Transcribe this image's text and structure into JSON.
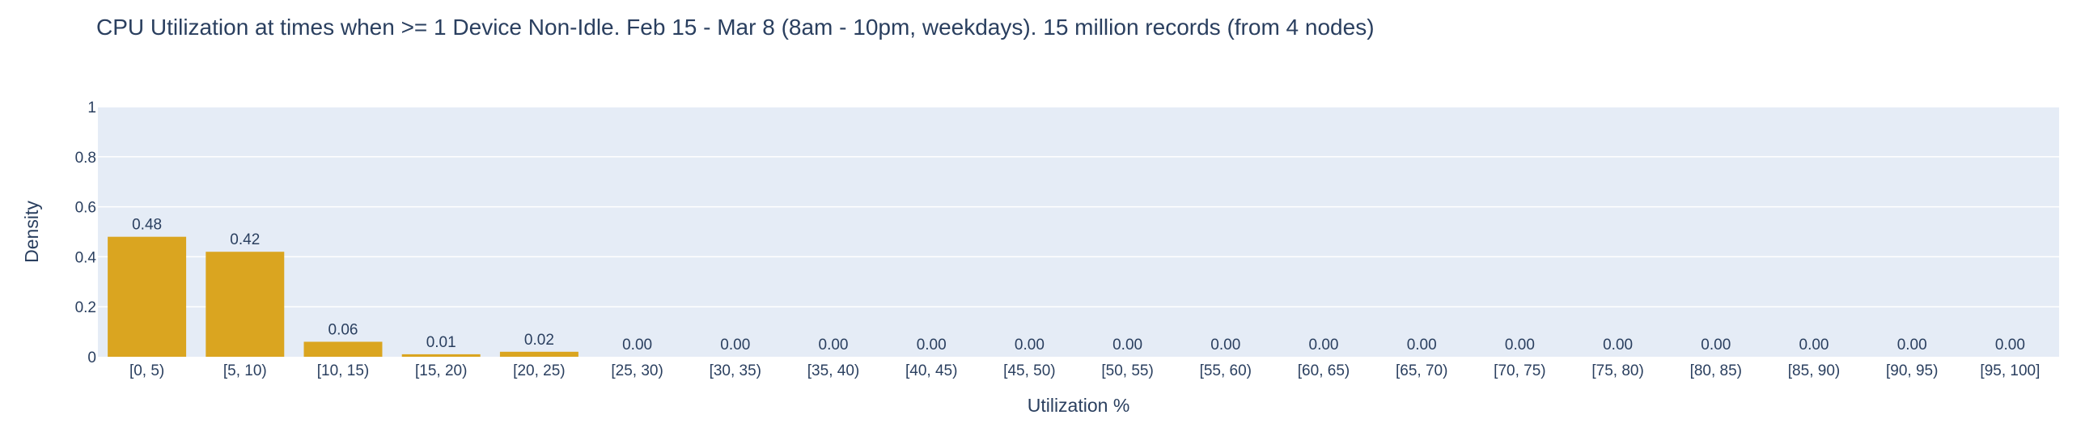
{
  "chart_data": {
    "type": "bar",
    "title": "CPU Utilization at times when >= 1 Device Non-Idle. Feb 15 - Mar 8 (8am - 10pm, weekdays). 15 million records (from 4 nodes)",
    "xlabel": "Utilization %",
    "ylabel": "Density",
    "ylim": [
      0,
      1
    ],
    "yticks": [
      "0",
      "0.2",
      "0.4",
      "0.6",
      "0.8",
      "1"
    ],
    "categories": [
      "[0, 5)",
      "[5, 10)",
      "[10, 15)",
      "[15, 20)",
      "[20, 25)",
      "[25, 30)",
      "[30, 35)",
      "[35, 40)",
      "[40, 45)",
      "[45, 50)",
      "[50, 55)",
      "[55, 60)",
      "[60, 65)",
      "[65, 70)",
      "[70, 75)",
      "[75, 80)",
      "[80, 85)",
      "[85, 90)",
      "[90, 95)",
      "[95, 100]"
    ],
    "values": [
      0.48,
      0.42,
      0.06,
      0.01,
      0.02,
      0.0,
      0.0,
      0.0,
      0.0,
      0.0,
      0.0,
      0.0,
      0.0,
      0.0,
      0.0,
      0.0,
      0.0,
      0.0,
      0.0,
      0.0
    ],
    "data_labels": [
      "0.48",
      "0.42",
      "0.06",
      "0.01",
      "0.02",
      "0.00",
      "0.00",
      "0.00",
      "0.00",
      "0.00",
      "0.00",
      "0.00",
      "0.00",
      "0.00",
      "0.00",
      "0.00",
      "0.00",
      "0.00",
      "0.00",
      "0.00"
    ],
    "bar_color": "#daa520",
    "plot_background": "#e5ecf6",
    "grid": true,
    "legend": "none"
  }
}
